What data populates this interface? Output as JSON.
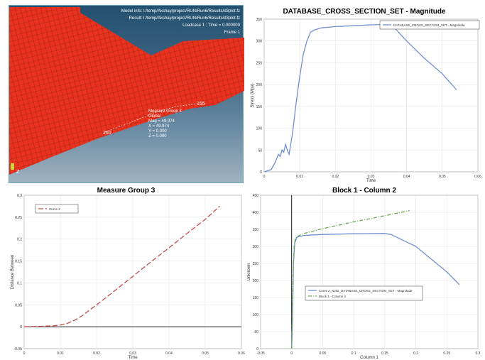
{
  "model_view": {
    "info_model": "Model info: I:/temp/Akshay/project/RUN/Run6/Results/d3plot.fz",
    "info_result": "Result: I:/temp/Akshay/project/RUN/Run6/Results/d3plot.fz",
    "info_loadcase": "Loadcase 1 : Time = 0.000000",
    "info_frame": "Frame 1",
    "measure_lines": [
      "Measure Group 3",
      "Global",
      "Mag = 49.974",
      "X = 49.974",
      "Y = 0.000",
      "Z = 0.000"
    ],
    "node_label_left": "260",
    "node_label_right": "155",
    "triad_label": "Z",
    "mesh_color": "#e8321e",
    "background_top": "#245070",
    "background_bottom": "#9fb2c2"
  },
  "chart_data": [
    {
      "id": "tr",
      "type": "line",
      "title": "DATABASE_CROSS_SECTION_SET - Magnitude",
      "xlabel": "Time",
      "ylabel": "Stress (Mpa)",
      "xlim": [
        0,
        0.06
      ],
      "ylim": [
        0,
        350
      ],
      "xticks": [
        0,
        0.01,
        0.02,
        0.03,
        0.04,
        0.05,
        0.06
      ],
      "xtick_labels": [
        "0",
        "0.01",
        "0.02",
        "0.03",
        "0.04",
        "0.05",
        "0.06"
      ],
      "yticks": [
        0,
        50,
        100,
        150,
        200,
        250,
        300,
        350
      ],
      "ytick_labels": [
        "0",
        "50",
        "100",
        "150",
        "200",
        "250",
        "300",
        "350"
      ],
      "grid": true,
      "legend": "top-right",
      "series": [
        {
          "name": "DATABASE_CROSS_SECTION_SET - Magnitude",
          "color": "#6f8fcf",
          "dash": "solid",
          "x": [
            0,
            0.002,
            0.003,
            0.004,
            0.0045,
            0.005,
            0.0055,
            0.006,
            0.0065,
            0.007,
            0.008,
            0.009,
            0.01,
            0.011,
            0.012,
            0.013,
            0.014,
            0.016,
            0.02,
            0.025,
            0.03,
            0.034,
            0.036,
            0.04,
            0.045,
            0.05,
            0.054
          ],
          "y": [
            0,
            5,
            20,
            40,
            35,
            50,
            45,
            63,
            50,
            40,
            90,
            160,
            220,
            270,
            300,
            320,
            325,
            330,
            333,
            335,
            337,
            338,
            335,
            300,
            260,
            225,
            188
          ]
        }
      ]
    },
    {
      "id": "bl",
      "type": "line",
      "title": "Measure Group 3",
      "xlabel": "Time",
      "ylabel": "Distance Between",
      "xlim": [
        0,
        0.06
      ],
      "ylim": [
        -0.05,
        0.3
      ],
      "xticks": [
        0,
        0.01,
        0.02,
        0.03,
        0.04,
        0.05,
        0.06
      ],
      "xtick_labels": [
        "0",
        "0.01",
        "0.02",
        "0.03",
        "0.04",
        "0.05",
        "0.06"
      ],
      "yticks": [
        -0.05,
        0,
        0.05,
        0.1,
        0.15,
        0.2,
        0.25,
        0.3
      ],
      "ytick_labels": [
        "-0.05",
        "0",
        "0.05",
        "0.1",
        "0.15",
        "0.2",
        "0.25",
        "0.3"
      ],
      "grid": true,
      "legend": "top-left",
      "zero_line": true,
      "series": [
        {
          "name": "Curve 2",
          "color": "#c0504d",
          "dash": "long",
          "x": [
            0,
            0.005,
            0.008,
            0.01,
            0.012,
            0.014,
            0.016,
            0.02,
            0.025,
            0.03,
            0.035,
            0.04,
            0.045,
            0.05,
            0.054
          ],
          "y": [
            0,
            0.001,
            0.002,
            0.004,
            0.008,
            0.015,
            0.025,
            0.05,
            0.082,
            0.115,
            0.148,
            0.18,
            0.213,
            0.245,
            0.275
          ]
        }
      ]
    },
    {
      "id": "br",
      "type": "line",
      "title": "Block 1 - Column 2",
      "xlabel": "Column 1",
      "ylabel": "Unknown",
      "xlim": [
        -0.05,
        0.3
      ],
      "ylim": [
        0,
        450
      ],
      "xticks": [
        -0.05,
        0,
        0.05,
        0.1,
        0.15,
        0.2,
        0.25,
        0.3
      ],
      "xtick_labels": [
        "-0.05",
        "0",
        "0.05",
        "0.1",
        "0.15",
        "0.2",
        "0.25",
        "0.3"
      ],
      "yticks": [
        0,
        50,
        100,
        150,
        200,
        250,
        300,
        350,
        400,
        450
      ],
      "ytick_labels": [
        "0",
        "50",
        "100",
        "150",
        "200",
        "250",
        "300",
        "350",
        "400",
        "450"
      ],
      "grid": true,
      "legend": "bottom-left",
      "zero_vline": true,
      "series": [
        {
          "name": "Curve 2_Xplot_DATABASE_CROSS_SECTION_SET - Magnitude",
          "color": "#6f8fcf",
          "dash": "solid",
          "x": [
            0,
            0.001,
            0.002,
            0.003,
            0.005,
            0.008,
            0.01,
            0.02,
            0.05,
            0.1,
            0.15,
            0.16,
            0.2,
            0.25,
            0.27
          ],
          "y": [
            0,
            60,
            150,
            250,
            310,
            325,
            328,
            332,
            335,
            337,
            338,
            335,
            300,
            225,
            188
          ]
        },
        {
          "name": "Block 1 - Column 2",
          "color": "#6aa84f",
          "dash": "dashdot",
          "x": [
            0,
            0.001,
            0.002,
            0.004,
            0.006,
            0.01,
            0.02,
            0.05,
            0.1,
            0.15,
            0.19
          ],
          "y": [
            0,
            80,
            200,
            300,
            325,
            330,
            338,
            352,
            372,
            390,
            405
          ]
        }
      ]
    }
  ]
}
